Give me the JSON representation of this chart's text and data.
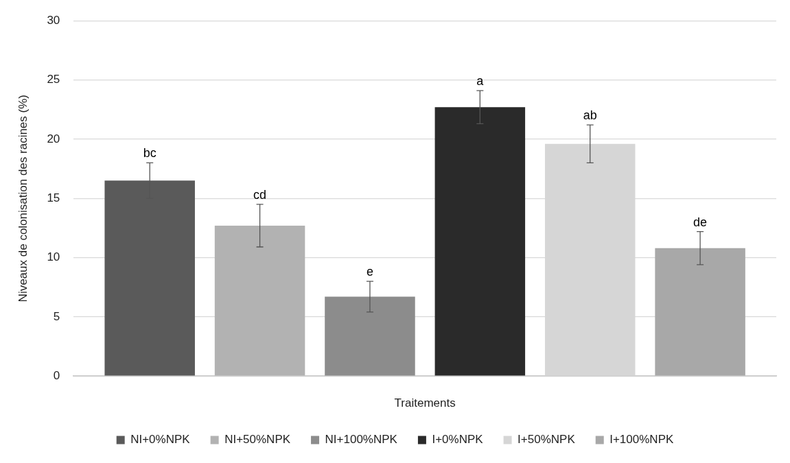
{
  "chart_data": {
    "type": "bar",
    "xlabel": "Traitements",
    "ylabel": "Niveaux de colonisation des racines (%)",
    "categories": [
      null
    ],
    "series": [
      {
        "name": "NI+0%NPK",
        "color": "#5a5a5a",
        "values": [
          16.5
        ],
        "errors": [
          1.5
        ],
        "value_labels": [
          "bc"
        ]
      },
      {
        "name": "NI+50%NPK",
        "color": "#b2b2b2",
        "values": [
          12.7
        ],
        "errors": [
          1.8
        ],
        "value_labels": [
          "cd"
        ]
      },
      {
        "name": "NI+100%NPK",
        "color": "#8c8c8c",
        "values": [
          6.7
        ],
        "errors": [
          1.3
        ],
        "value_labels": [
          "e"
        ]
      },
      {
        "name": "I+0%NPK",
        "color": "#2a2a2a",
        "values": [
          22.7
        ],
        "errors": [
          1.4
        ],
        "value_labels": [
          "a"
        ]
      },
      {
        "name": "I+50%NPK",
        "color": "#d6d6d6",
        "values": [
          19.6
        ],
        "errors": [
          1.6
        ],
        "value_labels": [
          "ab"
        ]
      },
      {
        "name": "I+100%NPK",
        "color": "#a8a8a8",
        "values": [
          10.8
        ],
        "errors": [
          1.4
        ],
        "value_labels": [
          "de"
        ]
      }
    ],
    "ylim": [
      0,
      30
    ],
    "yticks": [
      0,
      5,
      10,
      15,
      20,
      25,
      30
    ],
    "grid": "y",
    "legend": "bottom"
  }
}
